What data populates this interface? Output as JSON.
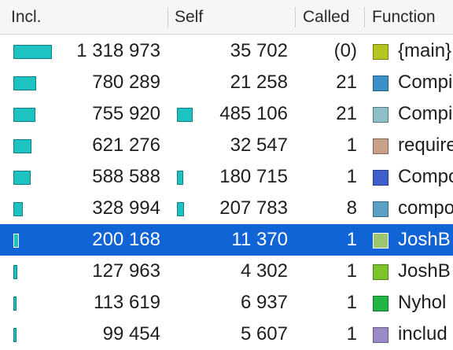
{
  "columns": {
    "incl": "Incl.",
    "self": "Self",
    "called": "Called",
    "function": "Function"
  },
  "rows": [
    {
      "incl": "1 318 973",
      "self": "35 702",
      "called": "(0)",
      "function": "{main}",
      "color": "#b5c41e",
      "incl_frac": 1.0,
      "self_frac": 0
    },
    {
      "incl": "780 289",
      "self": "21 258",
      "called": "21",
      "function": "CompilerBuilder",
      "color": "#3d8fc8",
      "incl_frac": 0.59,
      "self_frac": 0
    },
    {
      "incl": "755 920",
      "self": "485 106",
      "called": "21",
      "function": "CompilerBuilder",
      "color": "#8cbfc6",
      "incl_frac": 0.57,
      "self_frac": 0.37
    },
    {
      "incl": "621 276",
      "self": "32 547",
      "called": "1",
      "function": "require",
      "color": "#c9a088",
      "incl_frac": 0.47,
      "self_frac": 0
    },
    {
      "incl": "588 588",
      "self": "180 715",
      "called": "1",
      "function": "Composer",
      "color": "#3f5fcc",
      "incl_frac": 0.45,
      "self_frac": 0.14
    },
    {
      "incl": "328 994",
      "self": "207 783",
      "called": "8",
      "function": "composer",
      "color": "#5aa1c4",
      "incl_frac": 0.25,
      "self_frac": 0.16
    },
    {
      "incl": "200 168",
      "self": "11 370",
      "called": "1",
      "function": "JoshB",
      "color": "#9cc66e",
      "incl_frac": 0.15,
      "self_frac": 0,
      "selected": true
    },
    {
      "incl": "127 963",
      "self": "4 302",
      "called": "1",
      "function": "JoshB",
      "color": "#7dc42a",
      "incl_frac": 0.1,
      "self_frac": 0
    },
    {
      "incl": "113 619",
      "self": "6 937",
      "called": "1",
      "function": "Nyhol",
      "color": "#22b445",
      "incl_frac": 0.09,
      "self_frac": 0
    },
    {
      "incl": "99 454",
      "self": "5 607",
      "called": "1",
      "function": "includ",
      "color": "#9a8ac6",
      "incl_frac": 0.075,
      "self_frac": 0
    }
  ]
}
